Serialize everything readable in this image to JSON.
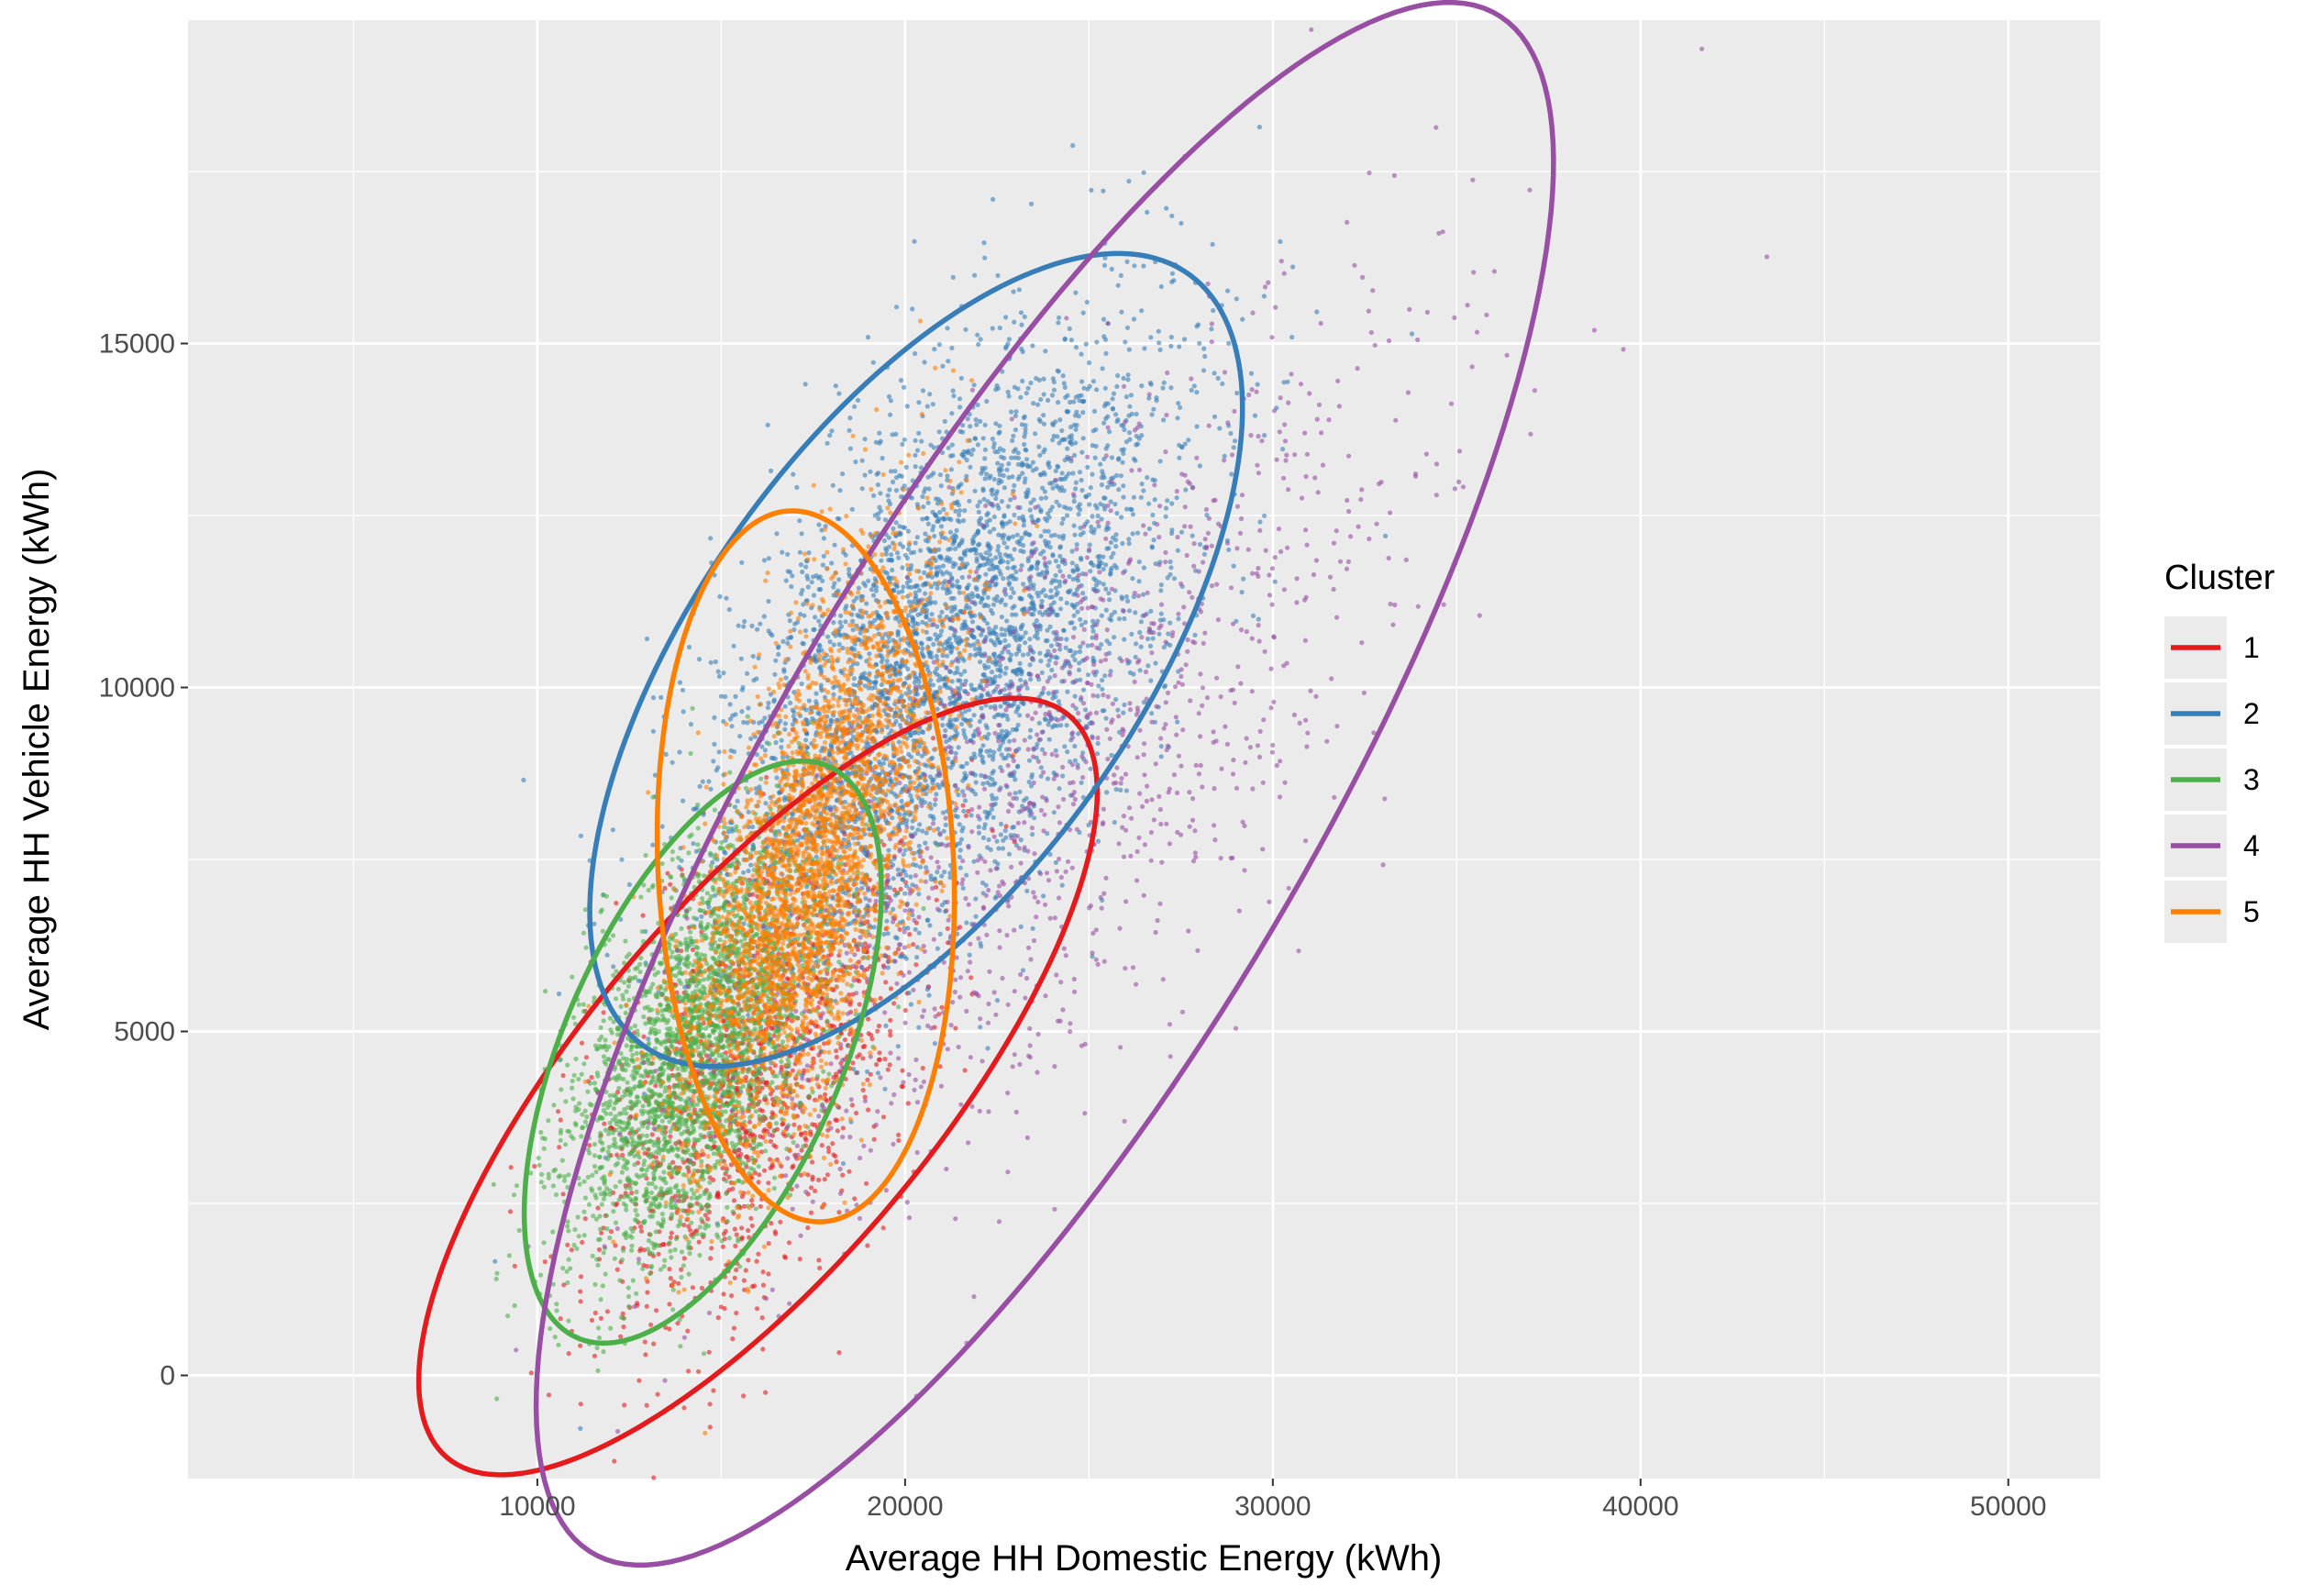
{
  "chart_data": {
    "type": "scatter",
    "title": "",
    "xlabel": "Average HH Domestic Energy (kWh)",
    "ylabel": "Average HH Vehicle Energy (kWh)",
    "xlim": [
      500,
      52500
    ],
    "ylim": [
      -1500,
      19700
    ],
    "x_ticks": [
      10000,
      20000,
      30000,
      40000,
      50000
    ],
    "x_tick_labels": [
      "10000",
      "20000",
      "30000",
      "40000",
      "50000"
    ],
    "y_ticks": [
      0,
      5000,
      10000,
      15000
    ],
    "y_tick_labels": [
      "0",
      "5000",
      "10000",
      "15000"
    ],
    "grid": true,
    "background": "#ebebeb",
    "legend": {
      "title": "Cluster",
      "placement": "right"
    },
    "series": [
      {
        "name": "1",
        "color": "#e41a1c",
        "center": [
          16000,
          4400
        ],
        "spread": [
          2600,
          1400
        ],
        "rotation_deg": 35,
        "count": 1300,
        "ellipse": {
          "center": [
            16000,
            4200
          ],
          "semi_major": 10300,
          "semi_minor": 3300,
          "rotation_deg": 28
        }
      },
      {
        "name": "2",
        "color": "#377eb8",
        "center": [
          21000,
          10400
        ],
        "spread": [
          3600,
          1700
        ],
        "rotation_deg": 30,
        "count": 4000,
        "ellipse": {
          "center": [
            20300,
            10400
          ],
          "semi_major": 9800,
          "semi_minor": 4200,
          "rotation_deg": 28
        }
      },
      {
        "name": "3",
        "color": "#4daf4a",
        "center": [
          14300,
          4700
        ],
        "spread": [
          2100,
          1100
        ],
        "rotation_deg": 40,
        "count": 2800,
        "ellipse": {
          "center": [
            14500,
            4700
          ],
          "semi_major": 5700,
          "semi_minor": 3000,
          "rotation_deg": 38
        }
      },
      {
        "name": "4",
        "color": "#984ea3",
        "center": [
          24000,
          8600
        ],
        "spread": [
          5500,
          2000
        ],
        "rotation_deg": 30,
        "count": 1200,
        "ellipse": {
          "center": [
            23800,
            8600
          ],
          "semi_major": 17000,
          "semi_minor": 5600,
          "rotation_deg": 38
        }
      },
      {
        "name": "5",
        "color": "#ff7f00",
        "center": [
          17500,
          7400
        ],
        "spread": [
          2500,
          1100
        ],
        "rotation_deg": 55,
        "count": 3200,
        "ellipse": {
          "center": [
            17300,
            7400
          ],
          "semi_major": 4000,
          "semi_minor": 5200,
          "rotation_deg": 10
        }
      }
    ]
  }
}
